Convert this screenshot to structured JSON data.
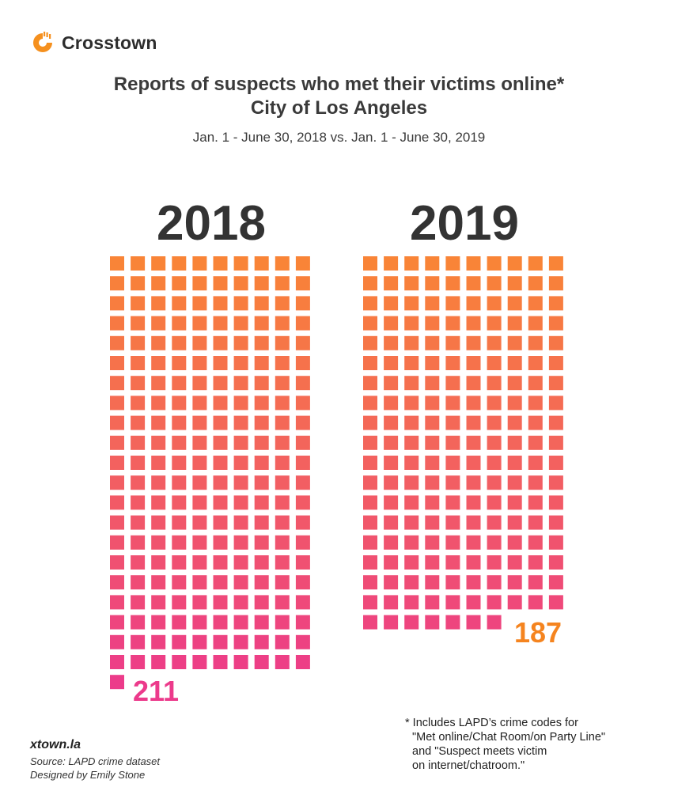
{
  "brand": {
    "name": "Crosstown",
    "logo_color": "#f5901e"
  },
  "chart_data": {
    "type": "waffle",
    "title": "Reports of suspects who met their victims online*",
    "title_line2": "City of Los Angeles",
    "subtitle": "Jan. 1 - June 30, 2018 vs. Jan. 1 - June 30, 2019",
    "units_per_row": 10,
    "series": [
      {
        "name": "2018",
        "value": 211,
        "value_label": "211",
        "value_color": "#ec3a8b"
      },
      {
        "name": "2019",
        "value": 187,
        "value_label": "187",
        "value_color": "#f5841f"
      }
    ],
    "gradient": {
      "top": "#f98536",
      "bottom": "#ec3a8b"
    }
  },
  "footnote": [
    "* Includes LAPD’s crime codes for",
    "\"Met online/Chat Room/on Party Line\"",
    "and \"Suspect meets victim",
    "on internet/chatroom.\""
  ],
  "footer": {
    "site": "xtown.la",
    "source": "Source: LAPD crime dataset",
    "designer": "Designed by Emily Stone"
  }
}
